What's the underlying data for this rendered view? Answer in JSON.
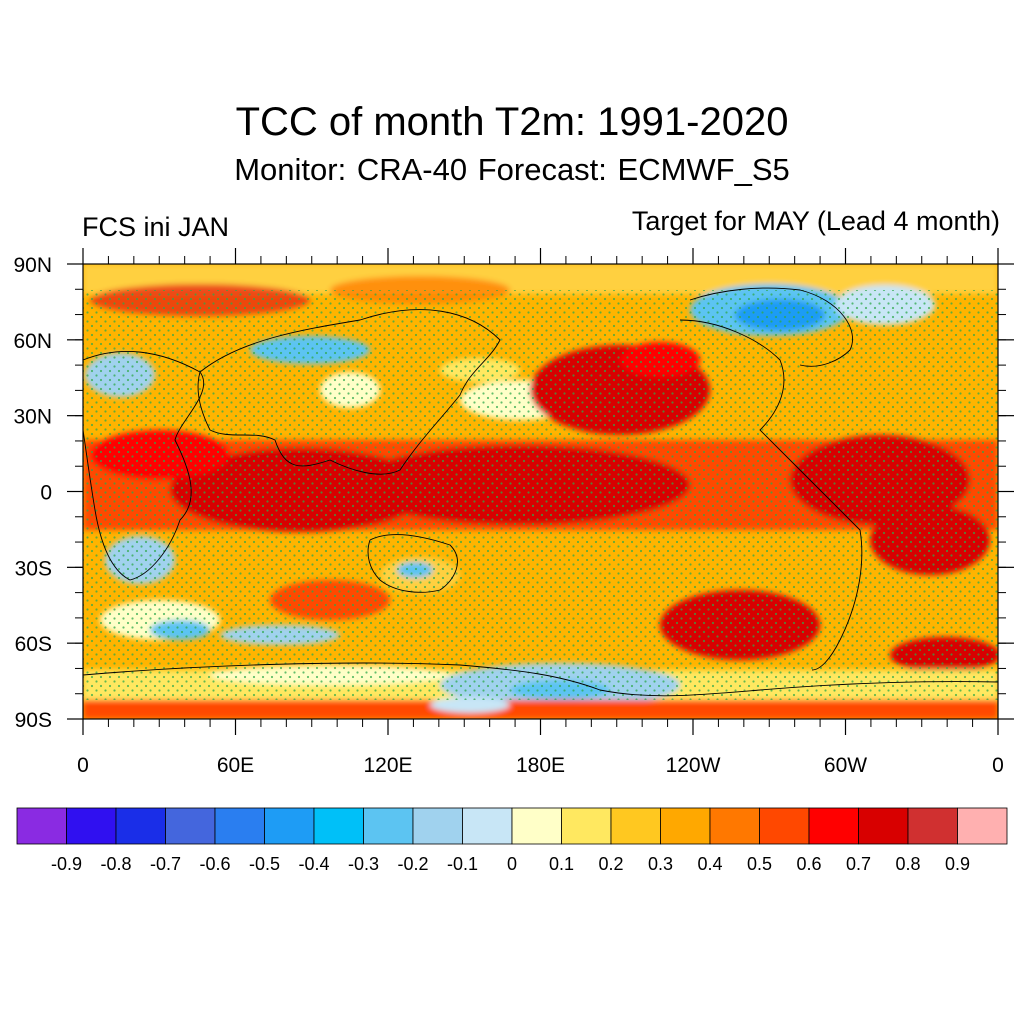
{
  "title": "TCC of month T2m: 1991-2020",
  "subtitle": "Monitor: CRA-40   Forecast: ECMWF_S5",
  "left_label": "FCS ini JAN",
  "right_label": "Target for MAY (Lead 4 month)",
  "map": {
    "lat_labels": [
      {
        "value": 90,
        "label": "90N"
      },
      {
        "value": 60,
        "label": "60N"
      },
      {
        "value": 30,
        "label": "30N"
      },
      {
        "value": 0,
        "label": "0"
      },
      {
        "value": -30,
        "label": "30S"
      },
      {
        "value": -60,
        "label": "60S"
      },
      {
        "value": -90,
        "label": "90S"
      }
    ],
    "lon_labels": [
      {
        "value": 0,
        "label": "0"
      },
      {
        "value": 60,
        "label": "60E"
      },
      {
        "value": 120,
        "label": "120E"
      },
      {
        "value": 180,
        "label": "180E"
      },
      {
        "value": 240,
        "label": "120W"
      },
      {
        "value": 300,
        "label": "60W"
      },
      {
        "value": 360,
        "label": "0"
      }
    ]
  },
  "colorbar": {
    "colors": [
      "#8a2be2",
      "#3010f0",
      "#1a2ee8",
      "#4466dd",
      "#2a7ef0",
      "#1e9cf5",
      "#00c0f8",
      "#5cc4f2",
      "#a0d2ee",
      "#c8e6f6",
      "#ffffc8",
      "#ffe860",
      "#ffc820",
      "#ffa800",
      "#ff7800",
      "#ff4800",
      "#ff0000",
      "#d80000",
      "#d03030",
      "#ffb0b0"
    ],
    "labels": [
      "-0.9",
      "-0.8",
      "-0.7",
      "-0.6",
      "-0.5",
      "-0.4",
      "-0.3",
      "-0.2",
      "-0.1",
      "0",
      "0.1",
      "0.2",
      "0.3",
      "0.4",
      "0.5",
      "0.6",
      "0.7",
      "0.8",
      "0.9"
    ]
  },
  "colors": {
    "background_field": "#ffa800",
    "stipple": "#2ea84a",
    "coastline": "#000000"
  }
}
